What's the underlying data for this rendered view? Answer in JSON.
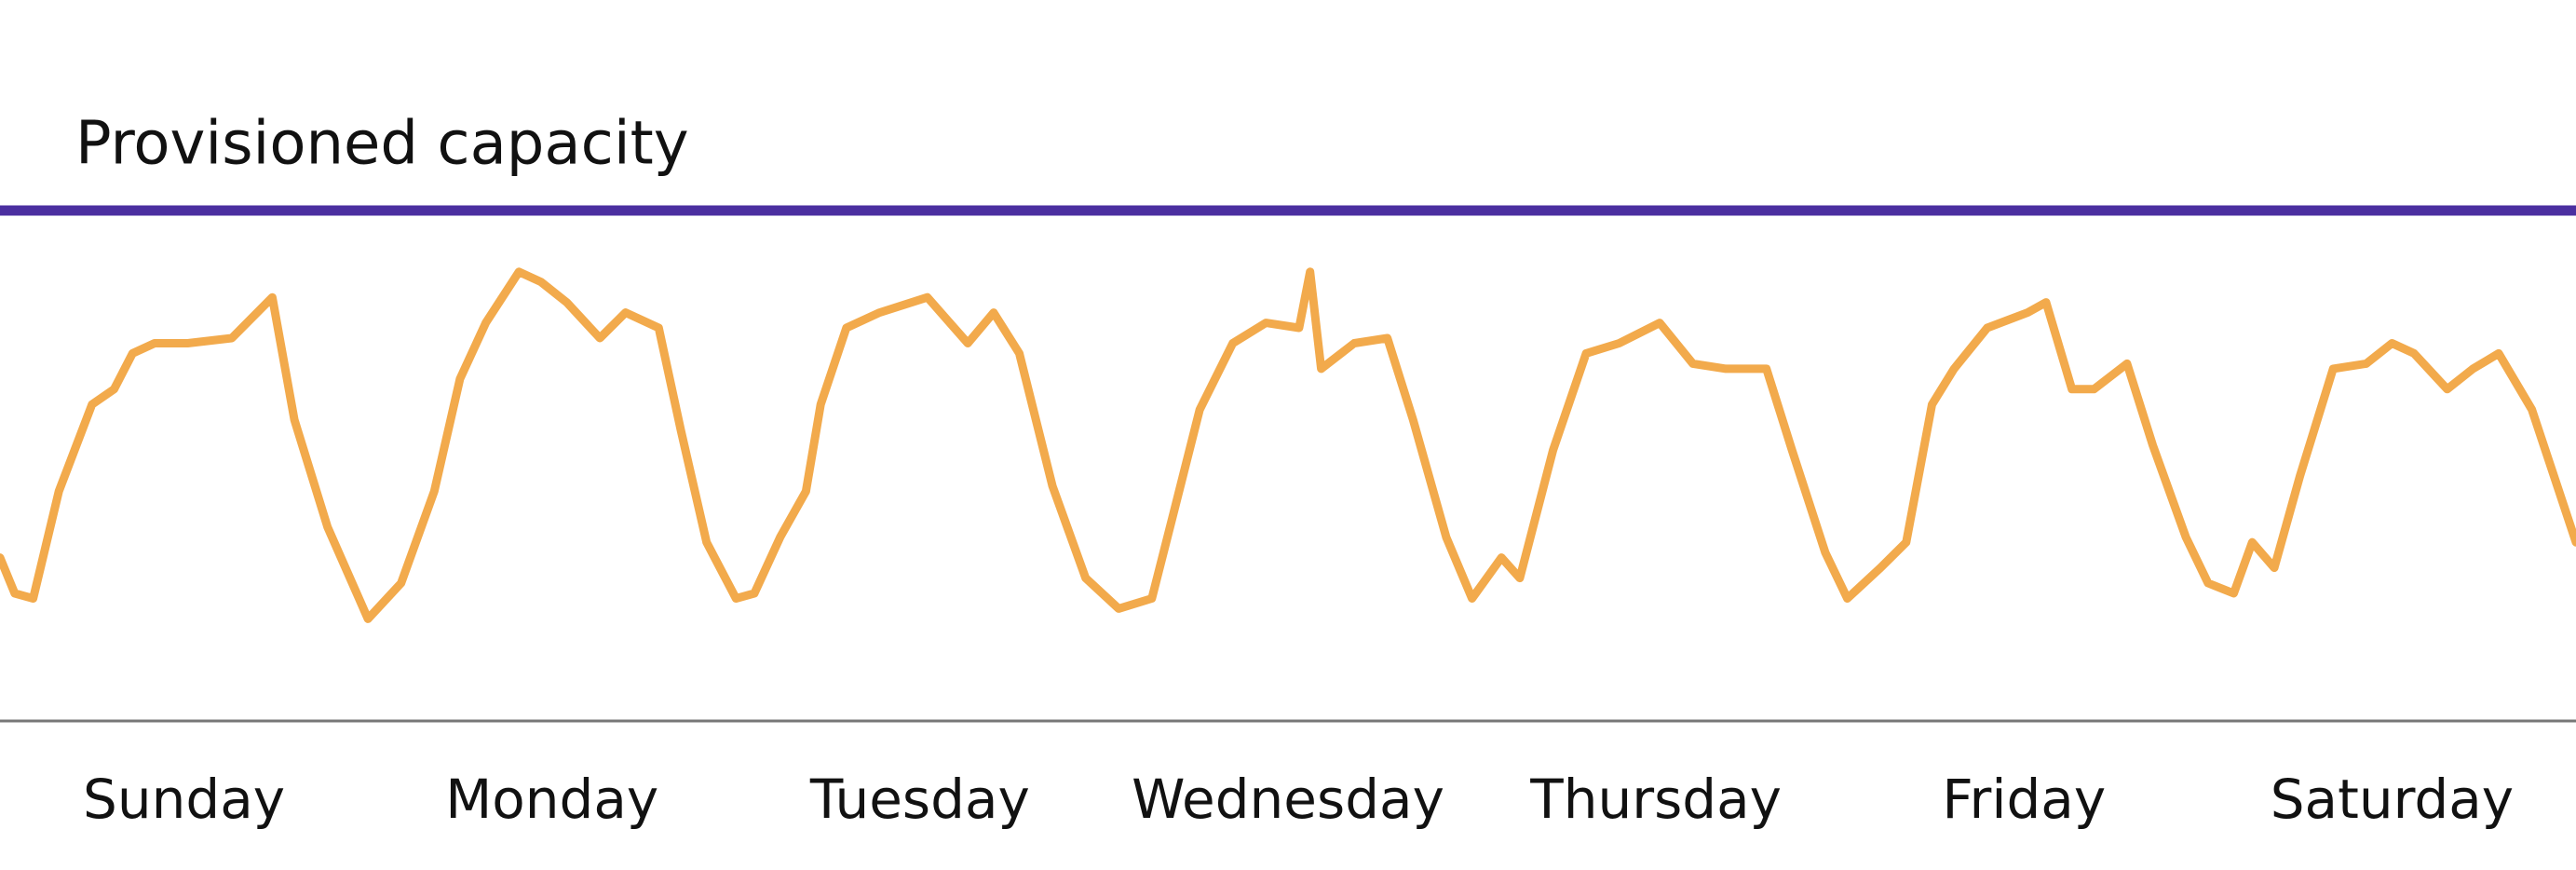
{
  "chart_data": {
    "type": "line",
    "categories": [
      "Sunday",
      "Monday",
      "Tuesday",
      "Wednesday",
      "Thursday",
      "Friday",
      "Saturday"
    ],
    "x": [
      0,
      0.04,
      0.09,
      0.16,
      0.25,
      0.31,
      0.36,
      0.42,
      0.51,
      0.63,
      0.74,
      0.8,
      0.89,
      1.0,
      1.09,
      1.18,
      1.25,
      1.32,
      1.41,
      1.47,
      1.54,
      1.63,
      1.7,
      1.79,
      1.85,
      1.92,
      2.0,
      2.05,
      2.12,
      2.19,
      2.23,
      2.3,
      2.39,
      2.52,
      2.63,
      2.7,
      2.77,
      2.86,
      2.95,
      3.04,
      3.13,
      3.19,
      3.26,
      3.35,
      3.44,
      3.53,
      3.56,
      3.59,
      3.68,
      3.77,
      3.84,
      3.93,
      4.0,
      4.08,
      4.13,
      4.22,
      4.31,
      4.4,
      4.51,
      4.6,
      4.69,
      4.8,
      4.87,
      4.96,
      5.02,
      5.11,
      5.18,
      5.25,
      5.31,
      5.4,
      5.51,
      5.56,
      5.63,
      5.69,
      5.78,
      5.85,
      5.94,
      6.0,
      6.07,
      6.12,
      6.18,
      6.25,
      6.34,
      6.43,
      6.5,
      6.56,
      6.65,
      6.72,
      6.79,
      6.88,
      7.0
    ],
    "series": [
      {
        "color": "#f2aa4c",
        "values": [
          32,
          25,
          24,
          45,
          62,
          65,
          72,
          74,
          74,
          75,
          83,
          59,
          38,
          20,
          27,
          45,
          67,
          78,
          88,
          86,
          82,
          75,
          80,
          77,
          57,
          35,
          24,
          25,
          36,
          45,
          62,
          77,
          80,
          83,
          74,
          80,
          72,
          46,
          28,
          22,
          24,
          41,
          61,
          74,
          78,
          77,
          88,
          69,
          74,
          75,
          59,
          36,
          24,
          32,
          28,
          53,
          72,
          74,
          78,
          70,
          69,
          69,
          53,
          33,
          24,
          30,
          35,
          62,
          69,
          77,
          80,
          82,
          65,
          65,
          70,
          54,
          36,
          27,
          25,
          35,
          30,
          48,
          69,
          70,
          74,
          72,
          65,
          69,
          72,
          61,
          35
        ]
      }
    ],
    "threshold": {
      "label": "Provisioned capacity",
      "value": 100,
      "color": "#4b2fa0"
    },
    "xlim": [
      0,
      7
    ],
    "ylim": [
      0,
      100
    ]
  }
}
